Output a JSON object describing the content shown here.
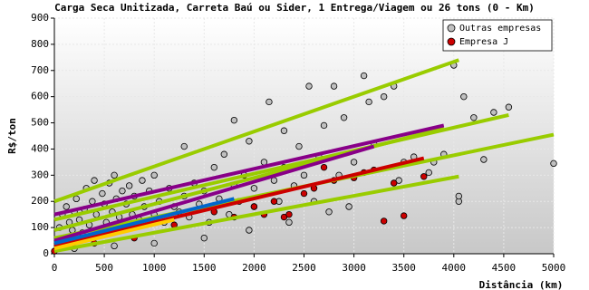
{
  "chart_data": {
    "type": "scatter",
    "title": "Carga Seca Unitizada, Carreta Baú ou Sider, 1 Entrega/Viagem ou 26 tons (0 - Km)",
    "x_label": "Distância (km)",
    "y_label": "R$/ton",
    "xlim": [
      0,
      5000
    ],
    "ylim": [
      0,
      900
    ],
    "xticks": [
      0,
      500,
      1000,
      1500,
      2000,
      2500,
      3000,
      3500,
      4000,
      4500,
      5000
    ],
    "yticks": [
      0,
      100,
      200,
      300,
      400,
      500,
      600,
      700,
      800,
      900
    ],
    "grid": true,
    "legend": "upper-right",
    "series": [
      {
        "name": "Outras empresas",
        "color": "#c0c0c0",
        "x": [
          50,
          80,
          100,
          120,
          150,
          180,
          200,
          220,
          250,
          280,
          300,
          320,
          350,
          380,
          400,
          420,
          450,
          480,
          500,
          520,
          550,
          580,
          600,
          620,
          650,
          680,
          700,
          720,
          750,
          780,
          800,
          850,
          880,
          900,
          950,
          1000,
          1000,
          1050,
          1100,
          1150,
          1200,
          1250,
          1300,
          1300,
          1350,
          1400,
          1450,
          1500,
          1550,
          1600,
          1650,
          1700,
          1750,
          1800,
          1800,
          1850,
          1900,
          1950,
          2000,
          2000,
          2100,
          2150,
          2200,
          2250,
          2300,
          2300,
          2400,
          2450,
          2500,
          2550,
          2600,
          2650,
          2700,
          2800,
          2850,
          2900,
          3000,
          3100,
          3150,
          3200,
          3300,
          3400,
          3500,
          3600,
          3750,
          3800,
          4000,
          4050,
          4050,
          4100,
          4200,
          4300,
          4400,
          4550,
          5000,
          3900,
          3450,
          2950,
          2750,
          2350,
          1950,
          1500,
          1000,
          600,
          200
        ],
        "values": [
          100,
          150,
          60,
          180,
          120,
          90,
          160,
          210,
          130,
          80,
          170,
          250,
          110,
          200,
          280,
          150,
          90,
          230,
          190,
          120,
          270,
          160,
          300,
          210,
          140,
          240,
          100,
          190,
          260,
          150,
          220,
          130,
          280,
          180,
          240,
          300,
          150,
          200,
          120,
          250,
          180,
          160,
          410,
          220,
          140,
          270,
          190,
          240,
          120,
          330,
          210,
          380,
          150,
          510,
          260,
          200,
          300,
          430,
          250,
          180,
          350,
          580,
          280,
          200,
          330,
          470,
          260,
          410,
          300,
          640,
          200,
          370,
          490,
          640,
          300,
          520,
          350,
          680,
          580,
          420,
          600,
          640,
          350,
          370,
          310,
          350,
          720,
          200,
          220,
          600,
          520,
          360,
          540,
          560,
          345,
          380,
          280,
          180,
          160,
          120,
          90,
          60,
          40,
          30,
          20
        ]
      },
      {
        "name": "Empresa J",
        "color": "#cc0000",
        "x": [
          0,
          400,
          800,
          1200,
          1600,
          2000,
          2100,
          2300,
          2350,
          2500,
          2600,
          2800,
          3000,
          3100,
          3200,
          3300,
          3400,
          3500,
          3700,
          2200,
          2700,
          1800
        ],
        "values": [
          10,
          40,
          60,
          110,
          160,
          180,
          150,
          140,
          150,
          230,
          250,
          280,
          290,
          310,
          320,
          125,
          270,
          145,
          295,
          200,
          330,
          140
        ]
      }
    ],
    "lines": [
      {
        "color": "#99cc00",
        "x": [
          0,
          4050
        ],
        "y": [
          200,
          740
        ]
      },
      {
        "color": "#99cc00",
        "x": [
          0,
          4550
        ],
        "y": [
          130,
          530
        ]
      },
      {
        "color": "#99cc00",
        "x": [
          0,
          5000
        ],
        "y": [
          60,
          455
        ]
      },
      {
        "color": "#99cc00",
        "x": [
          0,
          4050
        ],
        "y": [
          10,
          295
        ]
      },
      {
        "color": "#99cc00",
        "x": [
          0,
          3900
        ],
        "y": [
          90,
          480
        ]
      },
      {
        "color": "#880088",
        "x": [
          0,
          3900
        ],
        "y": [
          150,
          490
        ]
      },
      {
        "color": "#880088",
        "x": [
          0,
          3200
        ],
        "y": [
          50,
          410
        ]
      },
      {
        "color": "#cc0000",
        "x": [
          0,
          3700
        ],
        "y": [
          30,
          365
        ]
      },
      {
        "color": "#0066cc",
        "x": [
          0,
          1800
        ],
        "y": [
          40,
          210
        ]
      },
      {
        "color": "#ffcc00",
        "x": [
          0,
          1200
        ],
        "y": [
          20,
          130
        ]
      }
    ]
  }
}
